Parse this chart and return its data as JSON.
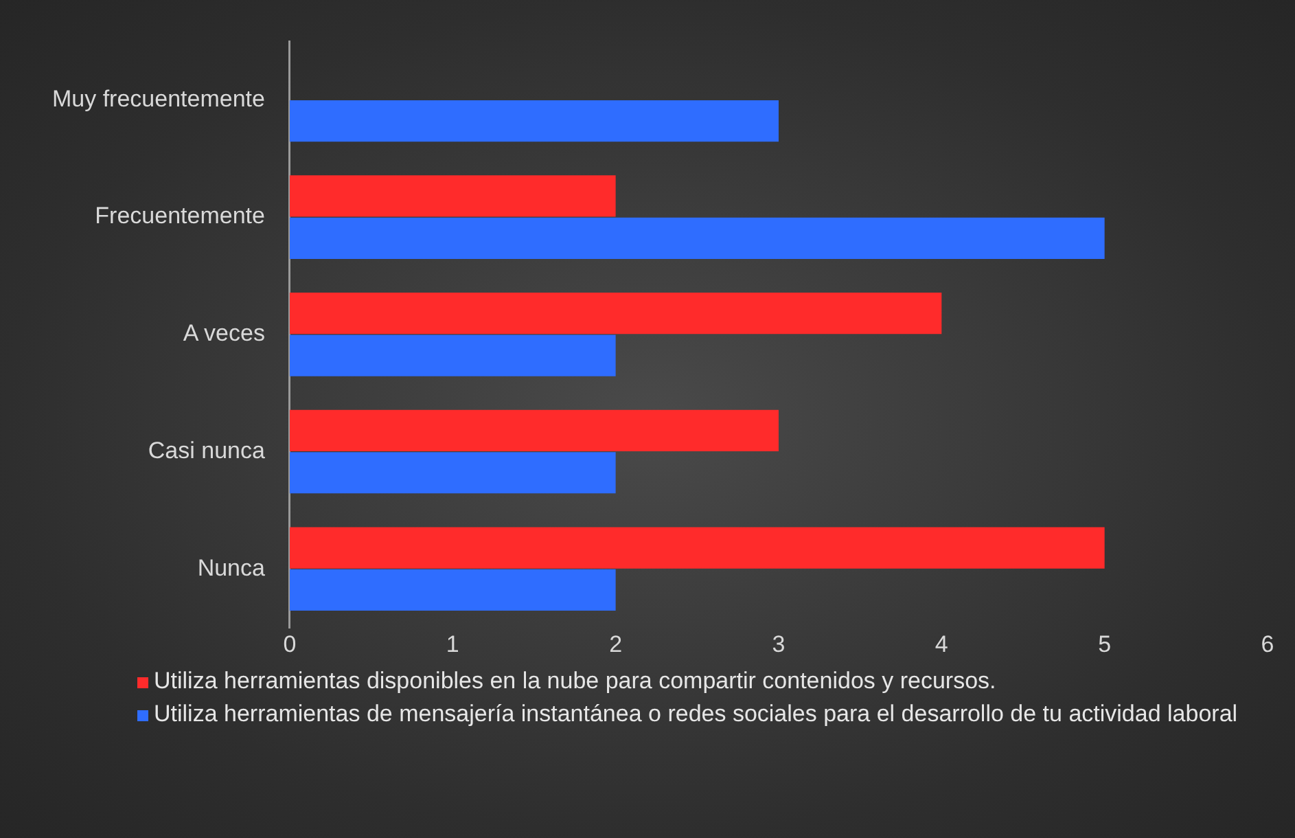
{
  "chart_data": {
    "type": "bar",
    "orientation": "horizontal",
    "categories": [
      "Muy frecuentemente",
      "Frecuentemente",
      "A veces",
      "Casi nunca",
      "Nunca"
    ],
    "series": [
      {
        "name": "Utiliza herramientas disponibles en la nube para compartir contenidos y recursos.",
        "color": "#ff2b2b",
        "values": [
          0,
          2,
          4,
          3,
          5
        ]
      },
      {
        "name": "Utiliza herramientas de mensajería instantánea o redes sociales para el desarrollo de tu actividad laboral",
        "color": "#2f6dff",
        "values": [
          3,
          5,
          2,
          2,
          2
        ]
      }
    ],
    "xlim": [
      0,
      6
    ],
    "xticks": [
      0,
      1,
      2,
      3,
      4,
      5,
      6
    ],
    "grid": false,
    "legend": "bottom"
  }
}
